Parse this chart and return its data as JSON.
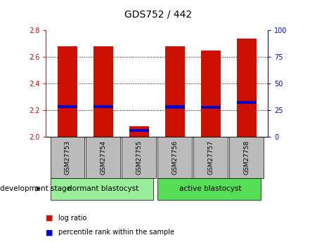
{
  "title": "GDS752 / 442",
  "samples": [
    "GSM27753",
    "GSM27754",
    "GSM27755",
    "GSM27756",
    "GSM27757",
    "GSM27758"
  ],
  "log_ratio_values": [
    2.68,
    2.68,
    2.08,
    2.68,
    2.65,
    2.74
  ],
  "log_ratio_base": 2.0,
  "percentile_rank_values": [
    28.5,
    28.5,
    6.0,
    28.0,
    27.5,
    32.0
  ],
  "ylim_left": [
    2.0,
    2.8
  ],
  "ylim_right": [
    0,
    100
  ],
  "yticks_left": [
    2.0,
    2.2,
    2.4,
    2.6,
    2.8
  ],
  "yticks_right": [
    0,
    25,
    50,
    75,
    100
  ],
  "bar_color": "#cc1100",
  "percentile_color": "#0000cc",
  "bar_width": 0.55,
  "groups": [
    {
      "label": "dormant blastocyst",
      "color": "#99ee99",
      "start": 0,
      "end": 2
    },
    {
      "label": "active blastocyst",
      "color": "#55dd55",
      "start": 3,
      "end": 5
    }
  ],
  "xlabel_area_color": "#bbbbbb",
  "development_stage_label": "development stage",
  "legend_log_ratio": "log ratio",
  "legend_percentile": "percentile rank within the sample",
  "grid_color": "black",
  "plot_bg_color": "#ffffff",
  "title_fontsize": 10,
  "tick_fontsize": 7,
  "label_fontsize": 6.5,
  "group_fontsize": 7.5,
  "legend_fontsize": 7,
  "dev_stage_fontsize": 7.5
}
